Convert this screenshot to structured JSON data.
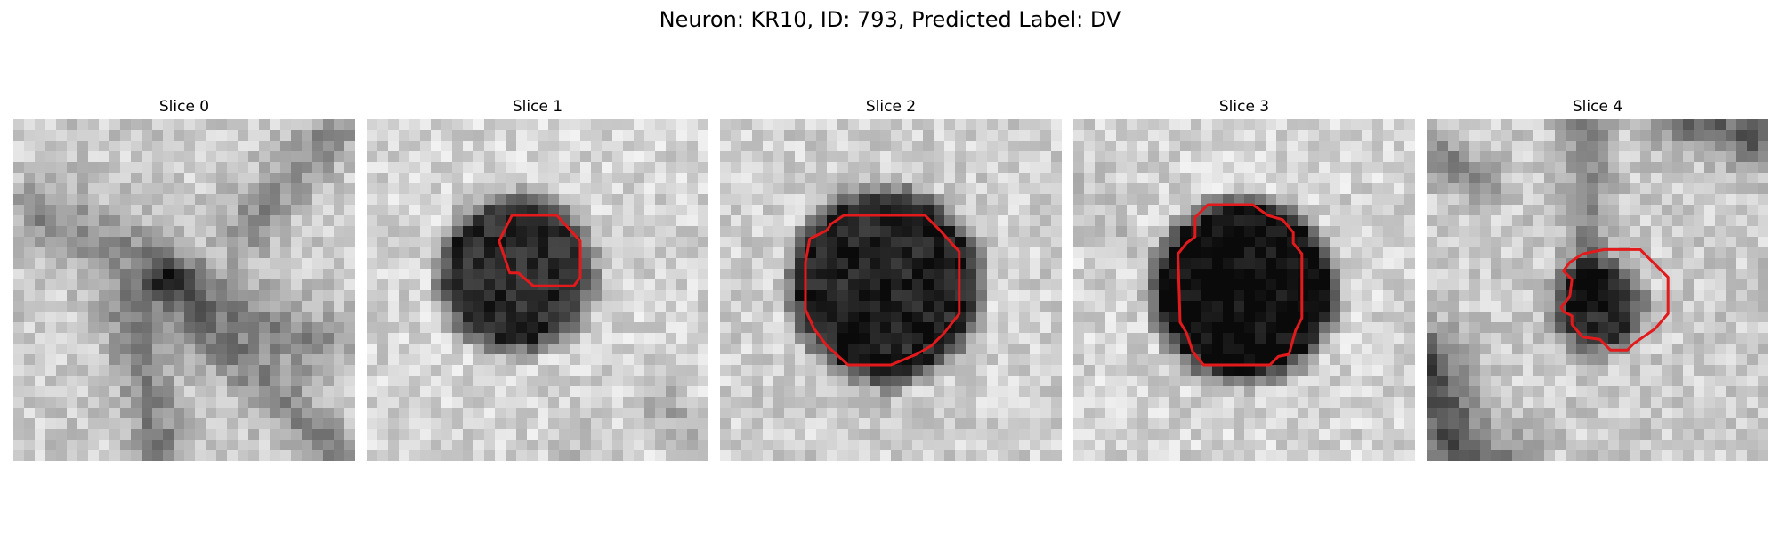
{
  "figure": {
    "title": "Neuron: KR10, ID: 793, Predicted Label: DV"
  },
  "overlay": {
    "contour_color": "#e31a1c"
  },
  "slices": [
    {
      "label": "Slice 0",
      "has_contour": false,
      "blob": "diagonal dark streaks with a small dark spot right of center"
    },
    {
      "label": "Slice 1",
      "has_contour": true,
      "blob": "dark round cell body"
    },
    {
      "label": "Slice 2",
      "has_contour": true,
      "blob": "large dark round cell body"
    },
    {
      "label": "Slice 3",
      "has_contour": true,
      "blob": "large very dark round cell body"
    },
    {
      "label": "Slice 4",
      "has_contour": true,
      "blob": "small dark spot with vertical dark streak"
    }
  ]
}
